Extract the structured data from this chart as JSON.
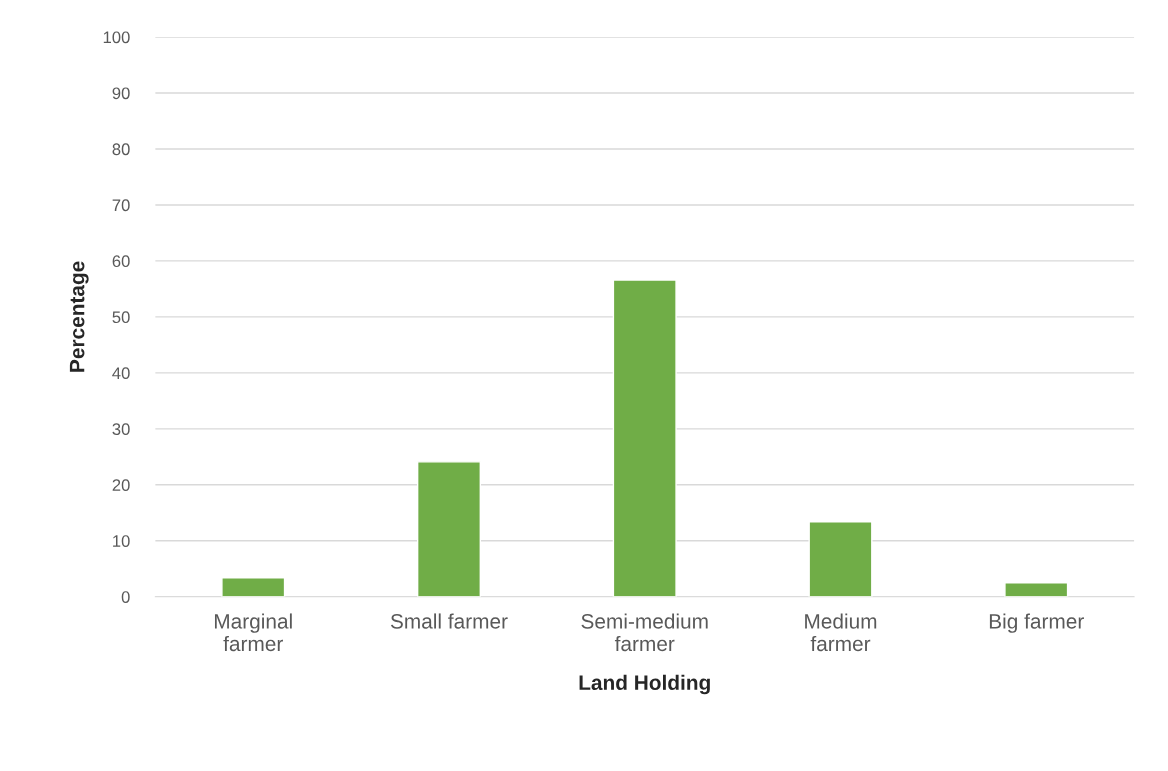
{
  "chart_data": {
    "type": "bar",
    "xlabel": "Land Holding",
    "ylabel": "Percentage",
    "categories": [
      "Marginal farmer",
      "Small farmer",
      "Semi-medium farmer",
      "Medium farmer",
      "Big farmer"
    ],
    "values": [
      3.4,
      24.1,
      56.6,
      13.4,
      2.5
    ],
    "color": "#70ad47",
    "ylim": [
      0,
      100
    ],
    "yticks": [
      0,
      10,
      20,
      30,
      40,
      50,
      60,
      70,
      80,
      90,
      100
    ],
    "grid": "y",
    "legend": false
  }
}
